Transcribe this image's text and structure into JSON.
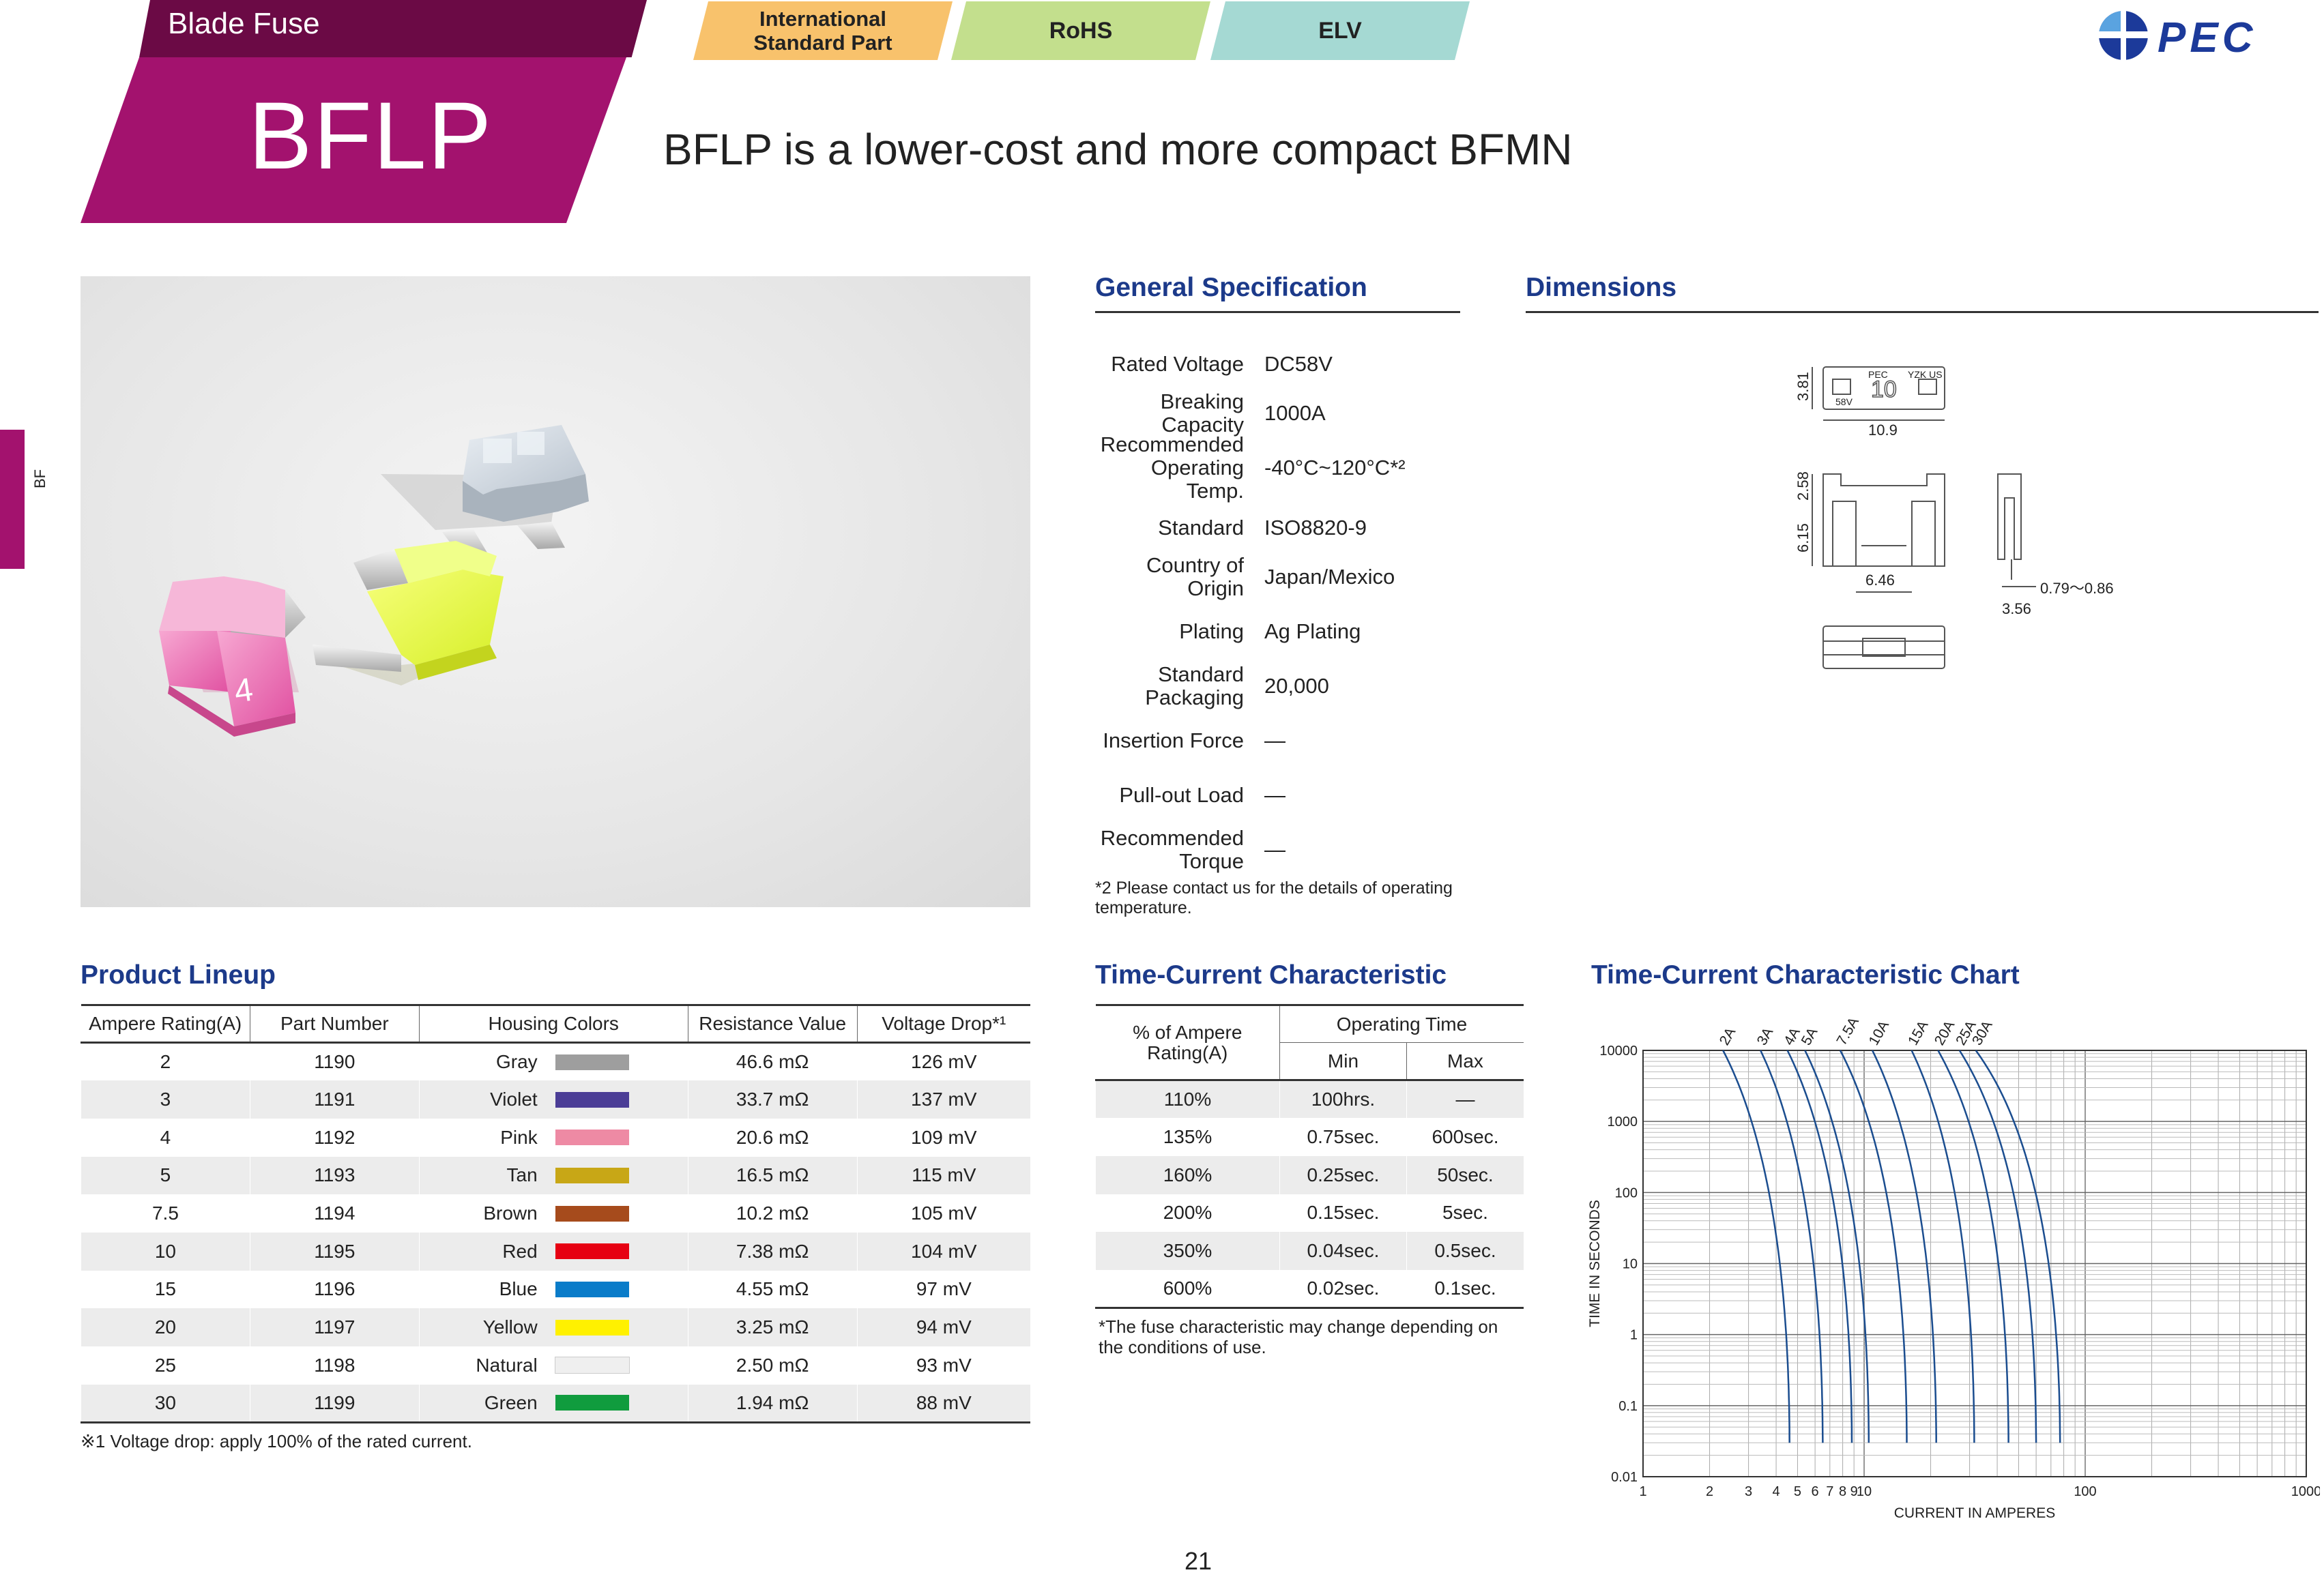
{
  "header": {
    "category": "Blade Fuse",
    "product_code": "BFLP",
    "tagline": "BFLP is a lower-cost and more compact BFMN",
    "tags": [
      "International\nStandard Part",
      "RoHS",
      "ELV"
    ],
    "logo_text": "PEC",
    "side_tab": "BF"
  },
  "photo": {
    "fuse_label": "4"
  },
  "general_spec": {
    "title": "General Specification",
    "rows": [
      {
        "k": "Rated Voltage",
        "v": "DC58V"
      },
      {
        "k": "Breaking Capacity",
        "v": "1000A"
      },
      {
        "k": "Recommended Operating Temp.",
        "v": "-40°C~120°C*²"
      },
      {
        "k": "Standard",
        "v": "ISO8820-9"
      },
      {
        "k": "Country of Origin",
        "v": "Japan/Mexico"
      },
      {
        "k": "Plating",
        "v": "Ag Plating"
      },
      {
        "k": "Standard Packaging",
        "v": "20,000"
      },
      {
        "k": "Insertion Force",
        "v": "—"
      },
      {
        "k": "Pull-out Load",
        "v": "—"
      },
      {
        "k": "Recommended Torque",
        "v": "—"
      }
    ],
    "note": "*2 Please contact us for the details of operating temperature."
  },
  "dimensions": {
    "title": "Dimensions",
    "labels": {
      "h": "3.81",
      "w": "10.9",
      "h2": "2.58",
      "h3": "6.15",
      "w2": "6.46",
      "t": "3.56",
      "range": "0.79〜0.86"
    },
    "body_marks": {
      "brand": "PEC",
      "rating": "10",
      "volt": "58V",
      "cert": "YZK US"
    }
  },
  "lineup": {
    "title": "Product Lineup",
    "headers": [
      "Ampere Rating(A)",
      "Part Number",
      "Housing Colors",
      "Resistance Value",
      "Voltage Drop*¹"
    ],
    "rows": [
      {
        "amp": "2",
        "part": "1190",
        "color": "Gray",
        "hex": "#9e9e9e",
        "res": "46.6 mΩ",
        "vd": "126 mV"
      },
      {
        "amp": "3",
        "part": "1191",
        "color": "Violet",
        "hex": "#4b3d96",
        "res": "33.7 mΩ",
        "vd": "137 mV"
      },
      {
        "amp": "4",
        "part": "1192",
        "color": "Pink",
        "hex": "#ee8aa4",
        "res": "20.6 mΩ",
        "vd": "109 mV"
      },
      {
        "amp": "5",
        "part": "1193",
        "color": "Tan",
        "hex": "#c8a716",
        "res": "16.5 mΩ",
        "vd": "115 mV"
      },
      {
        "amp": "7.5",
        "part": "1194",
        "color": "Brown",
        "hex": "#a64b1c",
        "res": "10.2 mΩ",
        "vd": "105 mV"
      },
      {
        "amp": "10",
        "part": "1195",
        "color": "Red",
        "hex": "#e60012",
        "res": "7.38 mΩ",
        "vd": "104 mV"
      },
      {
        "amp": "15",
        "part": "1196",
        "color": "Blue",
        "hex": "#0a7cc9",
        "res": "4.55 mΩ",
        "vd": "97 mV"
      },
      {
        "amp": "20",
        "part": "1197",
        "color": "Yellow",
        "hex": "#fff100",
        "res": "3.25 mΩ",
        "vd": "94 mV"
      },
      {
        "amp": "25",
        "part": "1198",
        "color": "Natural",
        "hex": "#efefef",
        "res": "2.50 mΩ",
        "vd": "93 mV"
      },
      {
        "amp": "30",
        "part": "1199",
        "color": "Green",
        "hex": "#109c3e",
        "res": "1.94 mΩ",
        "vd": "88 mV"
      }
    ],
    "note": "※1 Voltage drop: apply 100% of the rated current."
  },
  "time_current": {
    "title": "Time-Current Characteristic",
    "h_rating": "% of Ampere Rating(A)",
    "h_op": "Operating Time",
    "h_min": "Min",
    "h_max": "Max",
    "rows": [
      {
        "pct": "110%",
        "min": "100hrs.",
        "max": "—"
      },
      {
        "pct": "135%",
        "min": "0.75sec.",
        "max": "600sec."
      },
      {
        "pct": "160%",
        "min": "0.25sec.",
        "max": "50sec."
      },
      {
        "pct": "200%",
        "min": "0.15sec.",
        "max": "5sec."
      },
      {
        "pct": "350%",
        "min": "0.04sec.",
        "max": "0.5sec."
      },
      {
        "pct": "600%",
        "min": "0.02sec.",
        "max": "0.1sec."
      }
    ],
    "note": "*The fuse characteristic may change depending on the conditions of use."
  },
  "chart_data": {
    "type": "line",
    "title": "Time-Current Characteristic Chart",
    "xlabel": "CURRENT IN AMPERES",
    "ylabel": "TIME IN SECONDS",
    "xscale": "log",
    "yscale": "log",
    "xlim": [
      1,
      1000
    ],
    "ylim": [
      0.01,
      10000
    ],
    "x_ticks": [
      "1",
      "2",
      "3",
      "4",
      "5",
      "6",
      "7",
      "8",
      "9",
      "10",
      "100",
      "1000"
    ],
    "y_ticks": [
      "0.01",
      "0.1",
      "1",
      "10",
      "100",
      "1000",
      "10000"
    ],
    "grid": true,
    "series": [
      {
        "name": "2A",
        "asym": 2.3,
        "end": 4.6
      },
      {
        "name": "3A",
        "asym": 3.4,
        "end": 6.5
      },
      {
        "name": "4A",
        "asym": 4.5,
        "end": 8.8
      },
      {
        "name": "5A",
        "asym": 5.4,
        "end": 10.5
      },
      {
        "name": "7.5A",
        "asym": 7.8,
        "end": 15.6
      },
      {
        "name": "10A",
        "asym": 10.9,
        "end": 21.2
      },
      {
        "name": "15A",
        "asym": 16.4,
        "end": 31.5
      },
      {
        "name": "20A",
        "asym": 21.6,
        "end": 45
      },
      {
        "name": "25A",
        "asym": 27,
        "end": 60
      },
      {
        "name": "30A",
        "asym": 32,
        "end": 77
      }
    ]
  },
  "page_number": "21"
}
